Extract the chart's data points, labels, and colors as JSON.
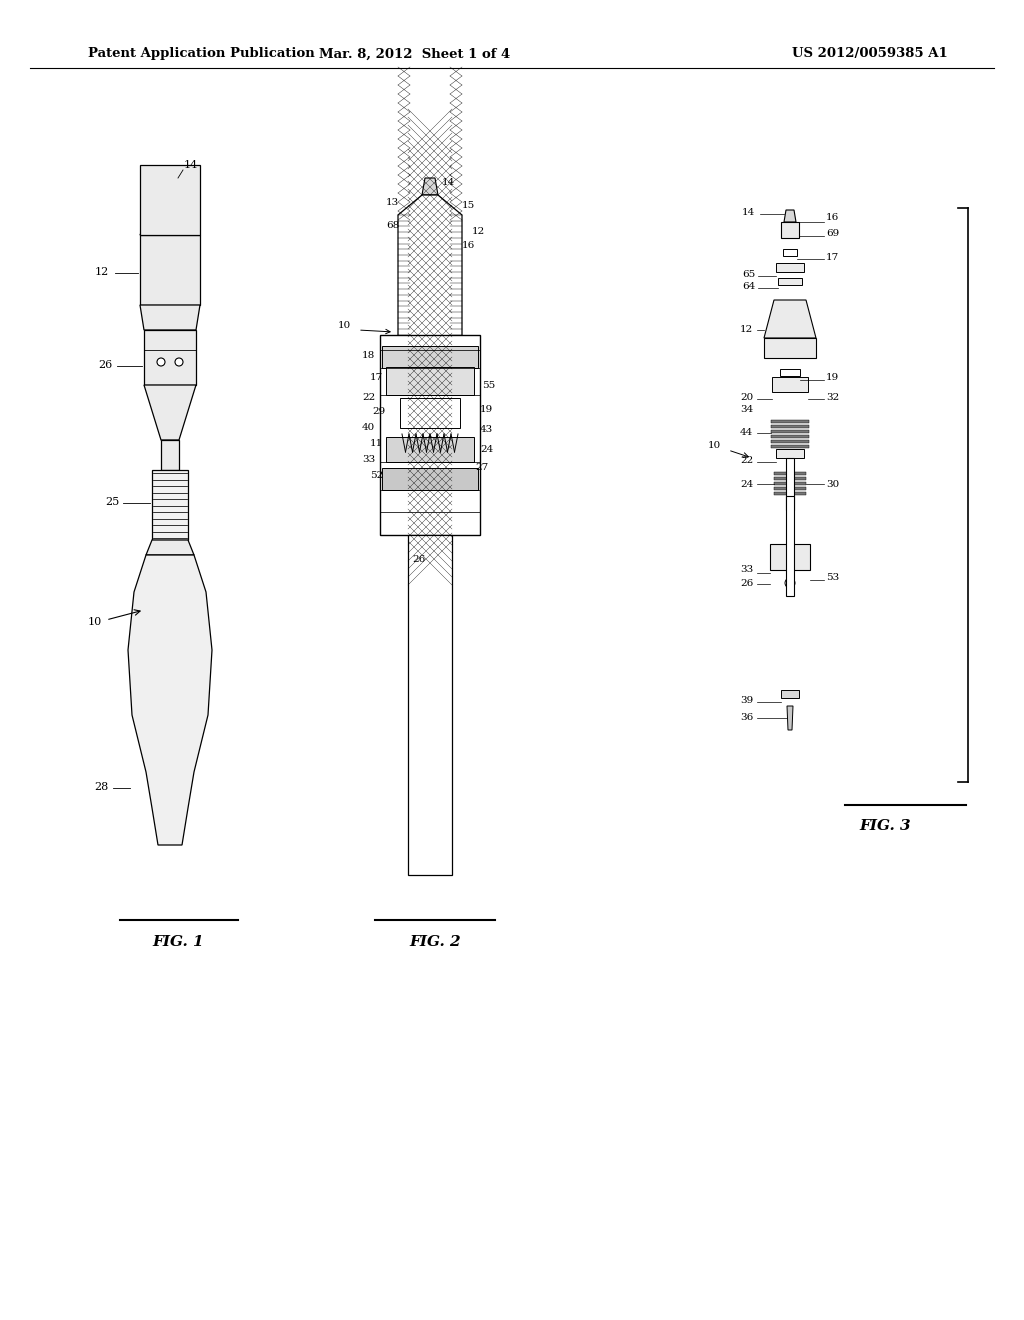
{
  "bg_color": "#ffffff",
  "header_left": "Patent Application Publication",
  "header_mid": "Mar. 8, 2012  Sheet 1 of 4",
  "header_right": "US 2012/0059385 A1",
  "fig1_label": "FIG. 1",
  "fig2_label": "FIG. 2",
  "fig3_label": "FIG. 3",
  "line_color": "#000000",
  "face_light": "#ebebeb",
  "face_mid": "#d8d8d8",
  "face_dark": "#c0c0c0"
}
